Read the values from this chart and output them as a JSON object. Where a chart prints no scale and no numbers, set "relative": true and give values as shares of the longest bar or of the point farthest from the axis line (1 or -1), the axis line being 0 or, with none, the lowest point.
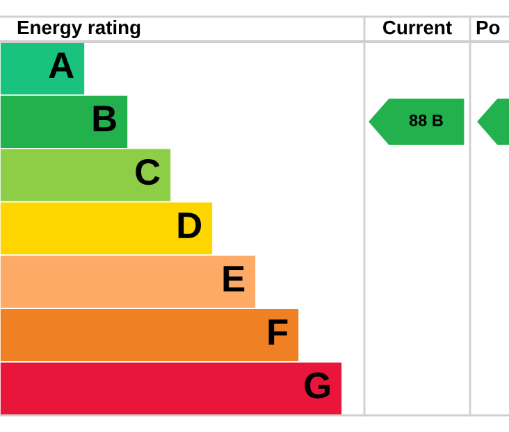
{
  "chart_data": {
    "type": "bar",
    "orientation": "horizontal",
    "relative": true,
    "title": "Energy rating",
    "categories": [
      "A",
      "B",
      "C",
      "D",
      "E",
      "F",
      "G"
    ],
    "values": [
      0.248,
      0.374,
      0.5,
      0.622,
      0.748,
      0.874,
      1
    ],
    "colors": [
      "#19c27d",
      "#23b14d",
      "#8dce46",
      "#ffd500",
      "#fcaa65",
      "#ef8023",
      "#e9153b"
    ],
    "annotations": [
      "Current",
      "Po",
      "88 B"
    ]
  }
}
